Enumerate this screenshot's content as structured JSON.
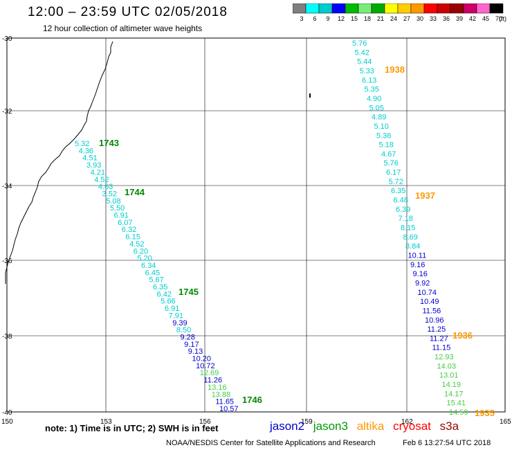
{
  "header": {
    "title": "12:00 – 23:59 UTC 02/05/2018",
    "subtitle": "12 hour collection of altimeter wave heights"
  },
  "scale": {
    "labels": [
      "3",
      "6",
      "9",
      "12",
      "15",
      "18",
      "21",
      "24",
      "27",
      "30",
      "33",
      "36",
      "39",
      "42",
      "45",
      "70"
    ],
    "unit": "(ft)",
    "colors": [
      "#7f7f7f",
      "#00ffff",
      "#00cccc",
      "#0000ff",
      "#00bb00",
      "#77ee77",
      "#00aa00",
      "#ffff00",
      "#ffcc00",
      "#ff9900",
      "#ff0000",
      "#cc0000",
      "#990000",
      "#cc0066",
      "#ff66cc",
      "#000000"
    ]
  },
  "map": {
    "lat_ticks": [
      "-30",
      "-32",
      "-34",
      "-36",
      "-38",
      "-40"
    ],
    "lon_ticks": [
      "150",
      "153",
      "156",
      "159",
      "162",
      "165"
    ]
  },
  "tracks": {
    "track1": {
      "values": [
        "5.32",
        "4.36",
        "4.51",
        "3.93",
        "4.21",
        "4.52",
        "4.63",
        "3.52",
        "5.08",
        "5.50",
        "6.91",
        "6.07",
        "6.32",
        "6.15",
        "4.52",
        "6.20",
        "5.20",
        "6.34",
        "6.45",
        "5.67",
        "6.35",
        "6.42",
        "5.66",
        "6.91",
        "7.91",
        "9.39",
        "8.50",
        "9.28",
        "9.17",
        "9.13",
        "10.20",
        "10.72",
        "12.69",
        "11.26",
        "13.16",
        "13.88",
        "11.65",
        "10.57"
      ],
      "times": [
        {
          "label": "1743",
          "color": "#008800"
        },
        {
          "label": "1744",
          "color": "#008800"
        },
        {
          "label": "1745",
          "color": "#008800"
        },
        {
          "label": "1746",
          "color": "#008800"
        }
      ]
    },
    "track2": {
      "values": [
        "5.76",
        "5.42",
        "5.44",
        "5.33",
        "6.13",
        "5.35",
        "4.90",
        "5.05",
        "4.89",
        "5.10",
        "5.36",
        "5.18",
        "4.67",
        "5.76",
        "6.17",
        "5.72",
        "6.35",
        "6.48",
        "6.39",
        "7.18",
        "8.15",
        "8.69",
        "8.84",
        "10.11",
        "9.16",
        "9.16",
        "9.92",
        "10.74",
        "10.49",
        "11.56",
        "10.96",
        "11.25",
        "11.27",
        "11.15",
        "12.93",
        "14.03",
        "13.01",
        "14.19",
        "14.17",
        "15.41",
        "14.59"
      ],
      "times": [
        {
          "label": "1938",
          "color": "#ff9900"
        },
        {
          "label": "1937",
          "color": "#ff9900"
        },
        {
          "label": "1936",
          "color": "#ff9900"
        },
        {
          "label": "1935",
          "color": "#ff9900"
        }
      ]
    }
  },
  "footer": {
    "note": "note: 1) Time is in UTC; 2) SWH is in feet",
    "legend": [
      {
        "name": "jason2",
        "color": "#0000cc"
      },
      {
        "name": "jason3",
        "color": "#009900"
      },
      {
        "name": "altika",
        "color": "#ff9900"
      },
      {
        "name": "cryosat",
        "color": "#ff0000"
      },
      {
        "name": "s3a",
        "color": "#990000"
      }
    ],
    "credit": "NOAA/NESDIS Center for Satellite Applications and Research",
    "timestamp": "Feb  6 13:27:54 UTC 2018"
  }
}
